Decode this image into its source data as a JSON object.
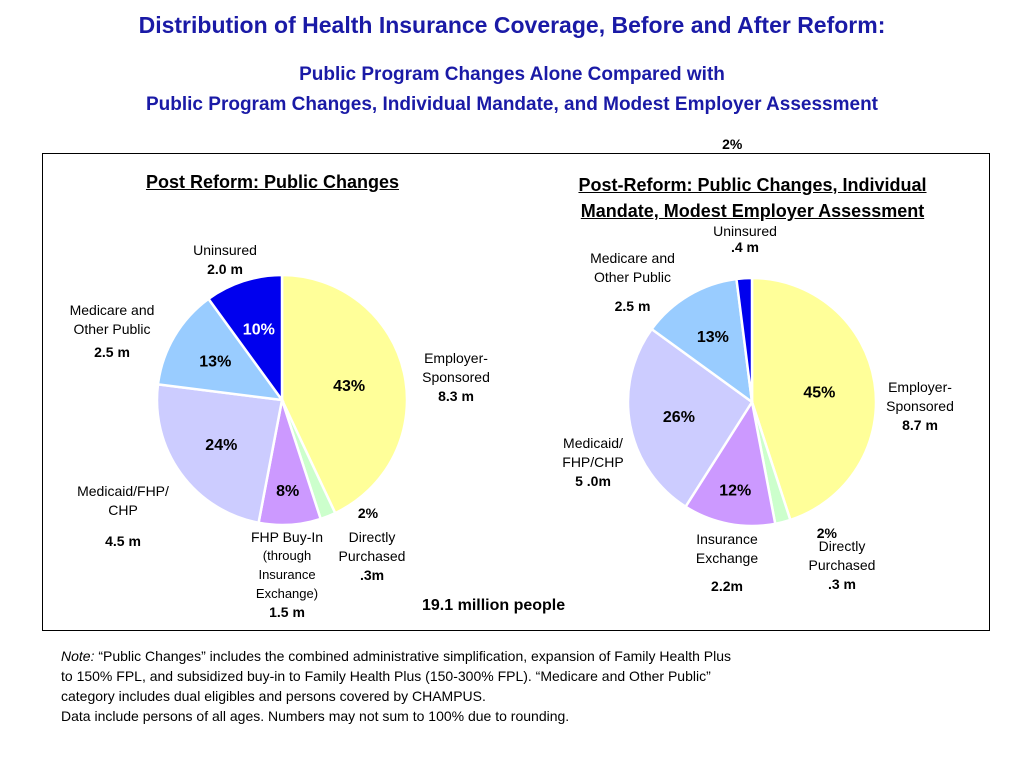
{
  "title": "Distribution of Health Insurance Coverage, Before and After Reform:",
  "subtitle_line1": "Public Program Changes Alone Compared with",
  "subtitle_line2": "Public Program Changes, Individual Mandate, and Modest Employer Assessment",
  "total": "19.1 million people",
  "note_prefix": "Note:",
  "note_line1": "“Public Changes” includes the combined administrative simplification, expansion of Family Health Plus",
  "note_line2": "to 150% FPL, and subsidized buy-in to Family Health Plus (150-300% FPL). “Medicare and Other Public”",
  "note_line3": "category includes dual eligibles and persons covered by CHAMPUS.",
  "note_line4": "Data include persons of all ages. Numbers may not sum to 100% due to rounding.",
  "labels1": {
    "uninsured": "Uninsured",
    "uninsured_val": "2.0 m",
    "medicare1": "Medicare and",
    "medicare2": "Other Public",
    "medicare_val": "2.5 m",
    "employer1": "Employer-",
    "employer2": "Sponsored",
    "employer_val": "8.3 m",
    "medicaid1": "Medicaid/FHP/",
    "medicaid2": "CHP",
    "medicaid_val": "4.5 m",
    "fhp1": "FHP Buy-In",
    "fhp2": "(through",
    "fhp3": "Insurance",
    "fhp4": "Exchange)",
    "fhp_val": "1.5 m",
    "direct1": "Directly",
    "direct2": "Purchased",
    "direct_val": ".3m"
  },
  "labels2": {
    "uninsured": "Uninsured",
    "uninsured_val": ".4 m",
    "medicare1": "Medicare and",
    "medicare2": "Other Public",
    "medicare_val": "2.5 m",
    "employer1": "Employer-",
    "employer2": "Sponsored",
    "employer_val": "8.7 m",
    "medicaid1": "Medicaid/",
    "medicaid2": "FHP/CHP",
    "medicaid_val": "5 .0m",
    "ins1": "Insurance",
    "ins2": "Exchange",
    "ins_val": "2.2m",
    "direct1": "Directly",
    "direct2": "Purchased",
    "direct_val": ".3 m"
  },
  "chart_data": [
    {
      "type": "pie",
      "title": "Post Reform: Public Changes",
      "categories": [
        "Employer-Sponsored",
        "Directly Purchased",
        "FHP Buy-In (through Insurance Exchange)",
        "Medicaid/FHP/CHP",
        "Medicare and Other Public",
        "Uninsured"
      ],
      "values": [
        43,
        2,
        8,
        24,
        13,
        10
      ],
      "value_labels": [
        "43%",
        "2%",
        "8%",
        "24%",
        "13%",
        "10%"
      ],
      "colors": [
        "#ffff99",
        "#ccffcc",
        "#cc99ff",
        "#ccccff",
        "#99ccff",
        "#0000ee"
      ]
    },
    {
      "type": "pie",
      "title": "Post-Reform: Public Changes, Individual Mandate, Modest Employer Assessment",
      "title_line1": "Post-Reform: Public Changes, Individual",
      "title_line2": "Mandate, Modest Employer Assessment",
      "categories": [
        "Employer-Sponsored",
        "Directly Purchased",
        "Insurance Exchange",
        "Medicaid/FHP/CHP",
        "Medicare and Other Public",
        "Uninsured"
      ],
      "values": [
        45,
        2,
        12,
        26,
        13,
        2
      ],
      "value_labels": [
        "45%",
        "2%",
        "12%",
        "26%",
        "13%",
        "2%"
      ],
      "colors": [
        "#ffff99",
        "#ccffcc",
        "#cc99ff",
        "#ccccff",
        "#99ccff",
        "#0000ee"
      ]
    }
  ]
}
